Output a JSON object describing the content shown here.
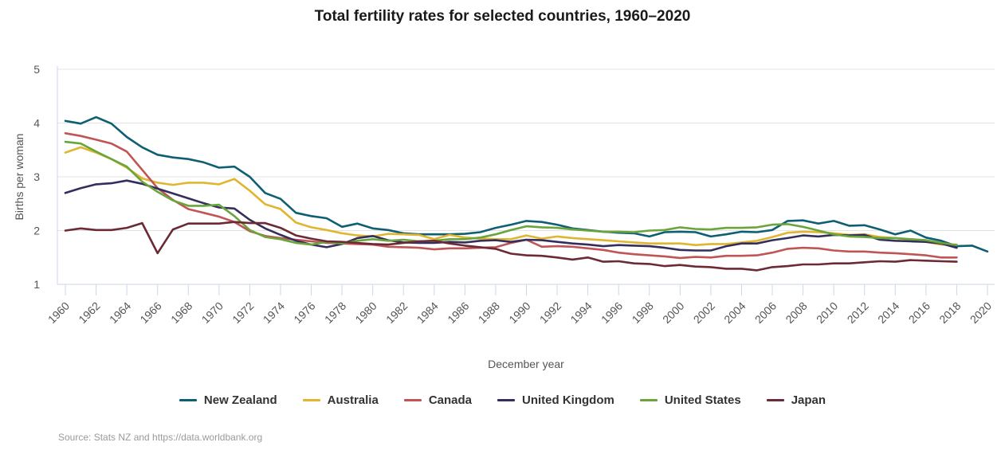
{
  "chart_data": {
    "type": "line",
    "title": "Total fertility rates for selected countries, 1960–2020",
    "xlabel": "December year",
    "ylabel": "Births per woman",
    "xlim": [
      1960,
      2020
    ],
    "ylim": [
      1,
      5
    ],
    "yticks": [
      1,
      2,
      3,
      4,
      5
    ],
    "xticks": [
      1960,
      1962,
      1964,
      1966,
      1968,
      1970,
      1972,
      1974,
      1976,
      1978,
      1980,
      1982,
      1984,
      1986,
      1988,
      1990,
      1992,
      1994,
      1996,
      1998,
      2000,
      2002,
      2004,
      2006,
      2008,
      2010,
      2012,
      2014,
      2016,
      2018,
      2020
    ],
    "grid": true,
    "legend_position": "bottom",
    "source": "Source: Stats NZ and https://data.worldbank.org",
    "series": [
      {
        "name": "New Zealand",
        "color": "#0f5f73",
        "start_year": 1960,
        "values": [
          4.04,
          3.99,
          4.11,
          3.99,
          3.74,
          3.55,
          3.41,
          3.36,
          3.33,
          3.27,
          3.17,
          3.19,
          3.0,
          2.7,
          2.59,
          2.33,
          2.27,
          2.23,
          2.07,
          2.13,
          2.04,
          2.01,
          1.95,
          1.93,
          1.93,
          1.93,
          1.94,
          1.97,
          2.05,
          2.11,
          2.18,
          2.16,
          2.11,
          2.04,
          2.01,
          1.98,
          1.96,
          1.95,
          1.89,
          1.97,
          1.98,
          1.97,
          1.89,
          1.93,
          1.98,
          1.97,
          2.01,
          2.18,
          2.19,
          2.13,
          2.18,
          2.09,
          2.1,
          2.02,
          1.93,
          2.0,
          1.87,
          1.81,
          1.71,
          1.72,
          1.61
        ]
      },
      {
        "name": "Australia",
        "color": "#e0b52f",
        "start_year": 1960,
        "values": [
          3.45,
          3.55,
          3.45,
          3.33,
          3.17,
          2.97,
          2.89,
          2.85,
          2.89,
          2.89,
          2.86,
          2.96,
          2.74,
          2.49,
          2.4,
          2.15,
          2.06,
          2.01,
          1.95,
          1.91,
          1.89,
          1.94,
          1.93,
          1.92,
          1.84,
          1.92,
          1.87,
          1.85,
          1.84,
          1.84,
          1.91,
          1.85,
          1.89,
          1.86,
          1.84,
          1.82,
          1.8,
          1.78,
          1.76,
          1.76,
          1.76,
          1.73,
          1.75,
          1.75,
          1.78,
          1.81,
          1.88,
          1.96,
          1.98,
          1.97,
          1.95,
          1.92,
          1.93,
          1.88,
          1.86,
          1.83,
          1.79,
          1.74,
          1.74
        ]
      },
      {
        "name": "Canada",
        "color": "#c05555",
        "start_year": 1960,
        "values": [
          3.81,
          3.76,
          3.69,
          3.62,
          3.47,
          3.13,
          2.79,
          2.57,
          2.4,
          2.33,
          2.26,
          2.16,
          1.99,
          1.9,
          1.86,
          1.83,
          1.8,
          1.77,
          1.76,
          1.75,
          1.74,
          1.7,
          1.69,
          1.68,
          1.65,
          1.67,
          1.67,
          1.68,
          1.69,
          1.77,
          1.83,
          1.7,
          1.71,
          1.7,
          1.67,
          1.64,
          1.59,
          1.56,
          1.54,
          1.52,
          1.49,
          1.51,
          1.5,
          1.53,
          1.53,
          1.54,
          1.59,
          1.66,
          1.68,
          1.67,
          1.63,
          1.61,
          1.61,
          1.59,
          1.58,
          1.56,
          1.54,
          1.5,
          1.5
        ]
      },
      {
        "name": "United Kingdom",
        "color": "#332e5c",
        "start_year": 1960,
        "values": [
          2.7,
          2.79,
          2.86,
          2.88,
          2.93,
          2.87,
          2.78,
          2.69,
          2.6,
          2.51,
          2.43,
          2.41,
          2.2,
          2.04,
          1.92,
          1.81,
          1.74,
          1.69,
          1.75,
          1.86,
          1.9,
          1.82,
          1.78,
          1.77,
          1.77,
          1.79,
          1.78,
          1.81,
          1.82,
          1.79,
          1.83,
          1.82,
          1.79,
          1.76,
          1.74,
          1.71,
          1.73,
          1.72,
          1.71,
          1.68,
          1.64,
          1.63,
          1.63,
          1.71,
          1.76,
          1.76,
          1.82,
          1.86,
          1.91,
          1.89,
          1.92,
          1.91,
          1.92,
          1.83,
          1.81,
          1.8,
          1.79,
          1.76,
          1.68
        ]
      },
      {
        "name": "United States",
        "color": "#6aa53c",
        "start_year": 1960,
        "values": [
          3.65,
          3.62,
          3.47,
          3.33,
          3.19,
          2.91,
          2.72,
          2.56,
          2.46,
          2.46,
          2.48,
          2.27,
          2.01,
          1.88,
          1.84,
          1.77,
          1.74,
          1.79,
          1.76,
          1.81,
          1.84,
          1.81,
          1.83,
          1.8,
          1.81,
          1.84,
          1.84,
          1.87,
          1.93,
          2.01,
          2.08,
          2.06,
          2.05,
          2.02,
          2.0,
          1.98,
          1.98,
          1.97,
          2.0,
          2.01,
          2.06,
          2.03,
          2.02,
          2.05,
          2.05,
          2.06,
          2.11,
          2.12,
          2.07,
          2.0,
          1.93,
          1.89,
          1.88,
          1.86,
          1.86,
          1.84,
          1.82,
          1.77,
          1.73
        ]
      },
      {
        "name": "Japan",
        "color": "#6b2a35",
        "start_year": 1960,
        "values": [
          2.0,
          2.04,
          2.01,
          2.01,
          2.05,
          2.14,
          1.58,
          2.02,
          2.13,
          2.13,
          2.13,
          2.16,
          2.14,
          2.14,
          2.05,
          1.91,
          1.85,
          1.8,
          1.79,
          1.77,
          1.75,
          1.74,
          1.77,
          1.8,
          1.81,
          1.76,
          1.72,
          1.69,
          1.66,
          1.57,
          1.54,
          1.53,
          1.5,
          1.46,
          1.5,
          1.42,
          1.43,
          1.39,
          1.38,
          1.34,
          1.36,
          1.33,
          1.32,
          1.29,
          1.29,
          1.26,
          1.32,
          1.34,
          1.37,
          1.37,
          1.39,
          1.39,
          1.41,
          1.43,
          1.42,
          1.45,
          1.44,
          1.43,
          1.42
        ]
      }
    ]
  }
}
